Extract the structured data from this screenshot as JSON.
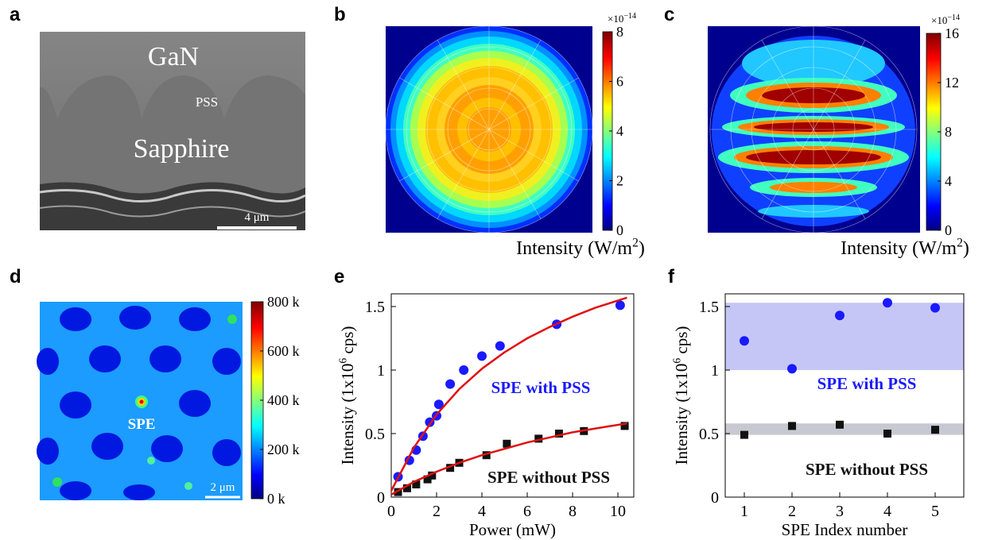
{
  "panel_a": {
    "label": "a",
    "layer_top": "GaN",
    "pss": "PSS",
    "layer_bottom": "Sapphire",
    "scale_bar": "4 μm"
  },
  "panel_b": {
    "label": "b",
    "colorbar": {
      "exponent_base": "×10",
      "exponent": "−14",
      "lim": [
        0,
        8
      ],
      "ticks": [
        0,
        2,
        4,
        6,
        8
      ]
    },
    "axis_label": {
      "text": "Intensity (W/m",
      "sup": "2",
      "end": ")"
    }
  },
  "panel_c": {
    "label": "c",
    "colorbar": {
      "exponent_base": "×10",
      "exponent": "−14",
      "lim": [
        0,
        16
      ],
      "ticks": [
        0,
        4,
        8,
        12,
        16
      ]
    },
    "axis_label": {
      "text": "Intensity (W/m",
      "sup": "2",
      "end": ")"
    }
  },
  "panel_d": {
    "label": "d",
    "annotation": "SPE",
    "scale_bar": "2 μm",
    "colorbar": {
      "lim": [
        0,
        800
      ],
      "ticks": [
        {
          "value": 0,
          "label": "0 k"
        },
        {
          "value": 200,
          "label": "200 k"
        },
        {
          "value": 400,
          "label": "400 k"
        },
        {
          "value": 600,
          "label": "600 k"
        },
        {
          "value": 800,
          "label": "800 k"
        }
      ]
    }
  },
  "chart_data": [
    {
      "type": "scatter",
      "panel_label": "e",
      "x_label": "Power (mW)",
      "y_label": "Intensity (1x10",
      "y_label_sup": "6",
      "y_label_end": " cps)",
      "xlim": [
        0,
        10.7
      ],
      "ylim": [
        0,
        1.6
      ],
      "xticks": [
        0,
        2,
        4,
        6,
        8,
        10
      ],
      "yticks": [
        0,
        0.5,
        1,
        1.5
      ],
      "series": [
        {
          "color": "#1a1aff",
          "marker": "circle",
          "x": [
            0.3,
            0.8,
            1.1,
            1.4,
            1.7,
            2.0,
            2.1,
            2.6,
            3.2,
            4.0,
            4.8,
            7.3,
            10.1
          ],
          "values": [
            0.16,
            0.29,
            0.37,
            0.48,
            0.59,
            0.64,
            0.73,
            0.89,
            1.0,
            1.11,
            1.19,
            1.36,
            1.51
          ]
        },
        {
          "color": "#111111",
          "marker": "square",
          "x": [
            0.3,
            0.7,
            1.1,
            1.6,
            1.8,
            2.6,
            3.0,
            4.2,
            5.1,
            6.5,
            7.4,
            8.5,
            10.3
          ],
          "values": [
            0.04,
            0.07,
            0.1,
            0.14,
            0.17,
            0.23,
            0.27,
            0.33,
            0.42,
            0.46,
            0.5,
            0.52,
            0.56
          ]
        },
        {
          "color": "#e01010",
          "style": "line",
          "x": [
            0,
            1,
            2,
            3,
            4,
            5,
            6,
            7,
            8,
            9,
            10.4
          ],
          "values": [
            0.05,
            0.39,
            0.65,
            0.85,
            1.01,
            1.14,
            1.25,
            1.34,
            1.42,
            1.49,
            1.57
          ]
        },
        {
          "color": "#e01010",
          "style": "line",
          "x": [
            0,
            1,
            2,
            3,
            4,
            5,
            6,
            7,
            8,
            9,
            10.4
          ],
          "values": [
            0.02,
            0.12,
            0.2,
            0.27,
            0.33,
            0.38,
            0.43,
            0.47,
            0.51,
            0.54,
            0.58
          ]
        }
      ],
      "annotations": [
        {
          "text": "SPE with PSS",
          "color": "#1a1aff"
        },
        {
          "text": "SPE without PSS",
          "color": "#111111"
        }
      ]
    },
    {
      "type": "scatter",
      "panel_label": "f",
      "x_label": "SPE Index number",
      "y_label": "Intensity (1x10",
      "y_label_sup": "6",
      "y_label_end": " cps)",
      "xlim": [
        0.6,
        5.6
      ],
      "ylim": [
        0,
        1.6
      ],
      "xticks": [
        1,
        2,
        3,
        4,
        5
      ],
      "yticks": [
        0,
        0.5,
        1,
        1.5
      ],
      "bands": [
        {
          "range": [
            1.0,
            1.53
          ],
          "color": "#c6c6f6"
        },
        {
          "range": [
            0.49,
            0.58
          ],
          "color": "#c8c8d2"
        }
      ],
      "series": [
        {
          "color": "#1a1aff",
          "marker": "circle",
          "x": [
            1,
            2,
            3,
            4,
            5
          ],
          "values": [
            1.23,
            1.01,
            1.43,
            1.53,
            1.49
          ]
        },
        {
          "color": "#111111",
          "marker": "square",
          "x": [
            1,
            2,
            3,
            4,
            5
          ],
          "values": [
            0.49,
            0.56,
            0.57,
            0.5,
            0.53
          ]
        }
      ],
      "annotations": [
        {
          "text": "SPE with PSS",
          "color": "#1a1aff"
        },
        {
          "text": "SPE without PSS",
          "color": "#111111"
        }
      ]
    }
  ]
}
